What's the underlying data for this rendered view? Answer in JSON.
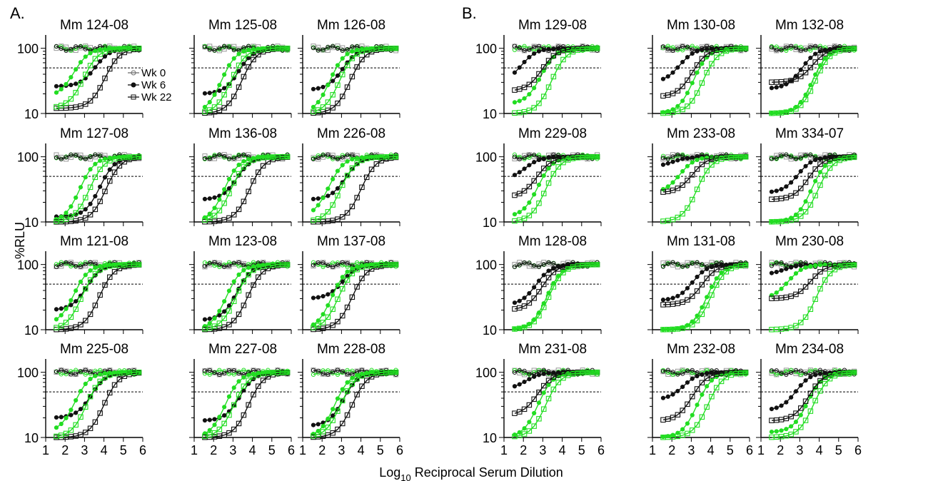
{
  "figure": {
    "panel_labels": [
      "A.",
      "B."
    ],
    "ylabel": "%RLU",
    "xlabel_main": "Log",
    "xlabel_sub": "10",
    "xlabel_rest": " Reciprocal Serum Dilution",
    "x_ticks": [
      "1",
      "2",
      "3",
      "4",
      "5",
      "6"
    ],
    "y_ticks": [
      "10",
      "100"
    ],
    "legend": [
      {
        "label": "Wk 0",
        "marker": "circle-open",
        "color": "#6e6e6e"
      },
      {
        "label": "Wk 6",
        "marker": "filled-dot",
        "color": "#111111"
      },
      {
        "label": "Wk 22",
        "marker": "square-open",
        "color": "#111111"
      }
    ],
    "colors": {
      "neutral_dark": "#111111",
      "neutral_gray": "#9a9a9a",
      "green": "#22dd22",
      "reference": "#000000"
    }
  },
  "chart_data": {
    "type": "line",
    "x_scale": "linear",
    "y_scale": "log",
    "xlim": [
      1,
      6
    ],
    "ylim": [
      10,
      160
    ],
    "reference_line": 50,
    "subplots": [
      {
        "title": "Mm 124-08",
        "g": "A",
        "i50": [
          3.55,
          2.45,
          4.05,
          2.95
        ],
        "min": [
          26,
          18,
          12,
          12
        ],
        "b": [
          100,
          100,
          100,
          100
        ]
      },
      {
        "title": "Mm 125-08",
        "g": "A",
        "i50": [
          3.3,
          2.4,
          3.45,
          2.9
        ],
        "min": [
          20,
          10,
          10,
          10
        ],
        "b": [
          100,
          100,
          100,
          100
        ]
      },
      {
        "title": "Mm 126-08",
        "g": "A",
        "i50": [
          3.05,
          2.4,
          3.45,
          2.9
        ],
        "min": [
          23,
          10,
          10,
          10
        ],
        "b": [
          100,
          100,
          100,
          100
        ]
      },
      {
        "title": "Mm 127-08",
        "g": "A",
        "i50": [
          3.8,
          2.75,
          4.1,
          3.25
        ],
        "min": [
          12,
          10,
          10,
          10
        ],
        "b": [
          100,
          100,
          100,
          100
        ]
      },
      {
        "title": "Mm 136-08",
        "g": "A",
        "i50": [
          3.2,
          2.55,
          3.85,
          2.9
        ],
        "min": [
          22,
          10,
          10,
          10
        ],
        "b": [
          100,
          100,
          100,
          100
        ]
      },
      {
        "title": "Mm 226-08",
        "g": "A",
        "i50": [
          3.2,
          2.35,
          4.0,
          2.95
        ],
        "min": [
          22,
          12,
          10,
          10
        ],
        "b": [
          100,
          100,
          100,
          100
        ]
      },
      {
        "title": "Mm 121-08",
        "g": "A",
        "i50": [
          3.1,
          2.45,
          3.75,
          2.85
        ],
        "min": [
          20,
          12,
          10,
          10
        ],
        "b": [
          100,
          100,
          100,
          100
        ]
      },
      {
        "title": "Mm 123-08",
        "g": "A",
        "i50": [
          3.2,
          2.65,
          3.75,
          3.15
        ],
        "min": [
          14,
          10,
          10,
          10
        ],
        "b": [
          100,
          100,
          100,
          100
        ]
      },
      {
        "title": "Mm 137-08",
        "g": "A",
        "i50": [
          3.05,
          2.5,
          3.55,
          2.85
        ],
        "min": [
          30,
          10,
          10,
          10
        ],
        "b": [
          100,
          100,
          100,
          100
        ]
      },
      {
        "title": "Mm 225-08",
        "g": "A",
        "i50": [
          3.35,
          2.5,
          4.0,
          3.1
        ],
        "min": [
          20,
          12,
          10,
          10
        ],
        "b": [
          100,
          100,
          100,
          100
        ]
      },
      {
        "title": "Mm 227-08",
        "g": "A",
        "i50": [
          3.35,
          2.6,
          3.8,
          3.05
        ],
        "min": [
          18,
          10,
          10,
          10
        ],
        "b": [
          100,
          100,
          100,
          100
        ]
      },
      {
        "title": "Mm 228-08",
        "g": "A",
        "i50": [
          3.1,
          2.65,
          3.55,
          2.95
        ],
        "min": [
          15,
          10,
          10,
          10
        ],
        "b": [
          100,
          100,
          100,
          100
        ]
      },
      {
        "title": "Mm 129-08",
        "g": "B",
        "i50": [
          1.9,
          2.9,
          2.95,
          3.45
        ],
        "min": [
          30,
          14,
          22,
          10
        ],
        "b": [
          100,
          100,
          100,
          100
        ]
      },
      {
        "title": "Mm 130-08",
        "g": "B",
        "i50": [
          2.4,
          3.1,
          3.05,
          3.6
        ],
        "min": [
          30,
          10,
          18,
          10
        ],
        "b": [
          100,
          100,
          100,
          100
        ]
      },
      {
        "title": "Mm 132-08",
        "g": "B",
        "i50": [
          3.1,
          3.65,
          3.65,
          3.8
        ],
        "min": [
          24,
          10,
          30,
          10
        ],
        "b": [
          100,
          100,
          100,
          100
        ]
      },
      {
        "title": "Mm 229-08",
        "g": "B",
        "i50": [
          2.1,
          2.75,
          2.7,
          3.15
        ],
        "min": [
          45,
          12,
          24,
          10
        ],
        "b": [
          100,
          100,
          100,
          100
        ]
      },
      {
        "title": "Mm 233-08",
        "g": "B",
        "i50": [
          2.05,
          2.4,
          3.05,
          3.3
        ],
        "min": [
          70,
          28,
          28,
          10
        ],
        "b": [
          100,
          100,
          100,
          100
        ]
      },
      {
        "title": "Mm 334-07",
        "g": "B",
        "i50": [
          2.9,
          3.6,
          3.45,
          3.95
        ],
        "min": [
          28,
          10,
          22,
          10
        ],
        "b": [
          100,
          100,
          100,
          100
        ]
      },
      {
        "title": "Mm 128-08",
        "g": "B",
        "i50": [
          2.65,
          3.2,
          2.95,
          3.3
        ],
        "min": [
          24,
          10,
          20,
          10
        ],
        "b": [
          100,
          100,
          100,
          100
        ]
      },
      {
        "title": "Mm 131-08",
        "g": "B",
        "i50": [
          3.05,
          3.8,
          3.55,
          4.0
        ],
        "min": [
          28,
          10,
          24,
          10
        ],
        "b": [
          100,
          100,
          100,
          100
        ]
      },
      {
        "title": "Mm 230-08",
        "g": "B",
        "i50": [
          2.2,
          2.4,
          3.55,
          3.85
        ],
        "min": [
          70,
          30,
          30,
          10
        ],
        "b": [
          100,
          100,
          100,
          100
        ]
      },
      {
        "title": "Mm 231-08",
        "g": "B",
        "i50": [
          2.15,
          2.75,
          2.75,
          3.15
        ],
        "min": [
          55,
          10,
          22,
          10
        ],
        "b": [
          100,
          100,
          100,
          100
        ]
      },
      {
        "title": "Mm 232-08",
        "g": "B",
        "i50": [
          2.6,
          3.3,
          3.05,
          3.85
        ],
        "min": [
          38,
          10,
          18,
          10
        ],
        "b": [
          100,
          100,
          100,
          100
        ]
      },
      {
        "title": "Mm 234-08",
        "g": "B",
        "i50": [
          2.8,
          3.4,
          3.45,
          3.7
        ],
        "min": [
          26,
          12,
          18,
          10
        ],
        "b": [
          100,
          100,
          100,
          100
        ]
      }
    ]
  }
}
